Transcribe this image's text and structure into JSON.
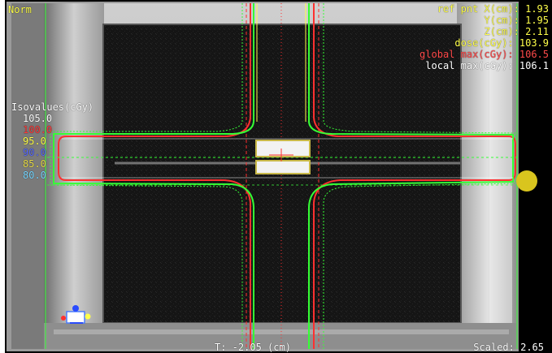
{
  "header_left": {
    "norm_label": "Norm"
  },
  "ref_point": {
    "x_label": "ref pnt X(cm):",
    "x_value": "1.93",
    "y_label": "Y(cm):",
    "y_value": "1.95",
    "z_label": "Z(cm):",
    "z_value": "2.11",
    "dose_label": "dose(cGy):",
    "dose_value": "103.9",
    "global_max_label": "global max(cGy):",
    "global_max_value": "106.5",
    "local_max_label": "local max(cGy):",
    "local_max_value": "106.1"
  },
  "isodose_panel": {
    "title": "Isovalues(cGy)",
    "levels": [
      {
        "value": "105.0",
        "color": "#ffffff"
      },
      {
        "value": "100.0",
        "color": "#ff3c3c"
      },
      {
        "value": "95.0",
        "color": "#ffff4a"
      },
      {
        "value": "90.0",
        "color": "#5a6cff"
      },
      {
        "value": "85.0",
        "color": "#e8dc4a"
      },
      {
        "value": "80.0",
        "color": "#7ad7ff"
      }
    ]
  },
  "footer": {
    "slice_position": "T: -2.05 (cm)",
    "scale_label": "Scaled: 2.65"
  },
  "colors": {
    "hud_yellow": "#ffff4a",
    "hud_red": "#ff4a4a",
    "hud_white": "#ffffff",
    "isodose_green": "#35ff35",
    "isodose_red": "#ff3030",
    "marker_yellow": "#d9c51e"
  },
  "icons": {
    "orientation": "orientation-cube-icon",
    "ref_marker": "reference-point-marker-icon"
  }
}
